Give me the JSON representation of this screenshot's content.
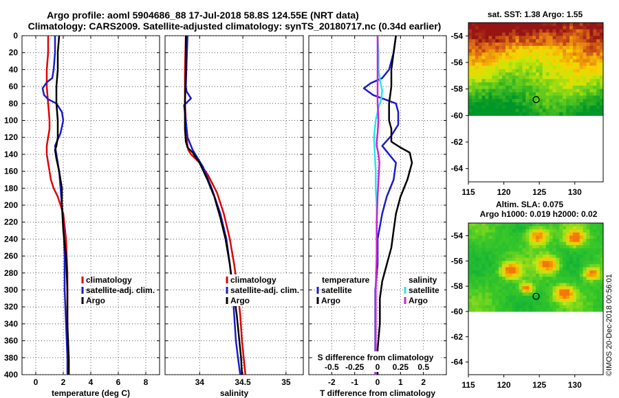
{
  "title": {
    "line1": "Argo profile: aoml 5904686_88 17-Jul-2018 58.8S 124.55E (NRT data)",
    "line2": "Climatology: CARS2009. Satellite-adjusted climatology: synTS_20180717.nc (0.34d earlier)"
  },
  "credit": "©IMOS 20-Dec-2018 00:56:01",
  "colors": {
    "climatology": "#e00000",
    "satellite": "#1a1acc",
    "argo": "#000000",
    "sal_satellite": "#20e8f0",
    "sal_argo": "#d020d0",
    "grid": "#555555"
  },
  "chart_data": [
    {
      "type": "line",
      "name": "temperature-panel",
      "xlabel": "temperature (deg C)",
      "ylabel": "depth",
      "xlim": [
        -1,
        9
      ],
      "ylim": [
        400,
        0
      ],
      "xticks": [
        0,
        2,
        4,
        6,
        8
      ],
      "yticks": [
        0,
        20,
        40,
        60,
        80,
        100,
        120,
        140,
        160,
        180,
        200,
        220,
        240,
        260,
        280,
        300,
        320,
        340,
        360,
        380,
        400
      ],
      "legend": [
        "climatology",
        "satellite-adj. clim.",
        "Argo"
      ],
      "series": [
        {
          "name": "climatology",
          "color": "#e00000",
          "x": [
            0.9,
            0.9,
            0.8,
            0.8,
            0.9,
            1.0,
            1.0,
            0.9,
            0.8,
            0.8,
            0.9,
            1.0,
            1.1,
            1.3,
            1.6,
            2.0,
            2.2,
            2.3,
            2.3,
            2.3,
            2.4,
            2.4
          ],
          "y": [
            0,
            20,
            40,
            60,
            80,
            100,
            110,
            120,
            130,
            140,
            150,
            160,
            170,
            180,
            190,
            210,
            240,
            280,
            320,
            360,
            380,
            400
          ]
        },
        {
          "name": "satellite-adj. clim.",
          "color": "#1a1acc",
          "x": [
            1.4,
            1.4,
            1.3,
            1.2,
            0.8,
            0.5,
            0.6,
            0.9,
            1.5,
            1.9,
            2.0,
            1.8,
            1.4,
            1.5,
            1.7,
            1.9,
            2.0,
            2.1,
            2.1,
            2.2,
            2.3,
            2.3
          ],
          "y": [
            0,
            20,
            40,
            50,
            55,
            62,
            70,
            75,
            80,
            90,
            100,
            115,
            130,
            140,
            160,
            200,
            220,
            260,
            300,
            340,
            380,
            400
          ]
        },
        {
          "name": "Argo",
          "color": "#000000",
          "x": [
            1.7,
            1.6,
            1.6,
            1.5,
            1.5,
            1.6,
            1.6,
            1.5,
            1.4,
            1.5,
            1.7,
            1.9,
            1.9,
            2.0,
            2.2,
            2.3,
            2.3,
            2.4,
            2.4
          ],
          "y": [
            0,
            20,
            40,
            60,
            80,
            100,
            120,
            130,
            135,
            145,
            160,
            180,
            200,
            230,
            260,
            300,
            340,
            380,
            400
          ]
        }
      ]
    },
    {
      "type": "line",
      "name": "salinity-panel",
      "xlabel": "salinity",
      "ylabel": "depth",
      "xlim": [
        33.6,
        35.2
      ],
      "ylim": [
        400,
        0
      ],
      "xticks": [
        34,
        34.5,
        35
      ],
      "yticks": [
        0,
        20,
        40,
        60,
        80,
        100,
        120,
        140,
        160,
        180,
        200,
        220,
        240,
        260,
        280,
        300,
        320,
        340,
        360,
        380,
        400
      ],
      "legend": [
        "climatology",
        "satellite-adj. clim.",
        "Argo"
      ],
      "series": [
        {
          "name": "climatology",
          "color": "#e00000",
          "x": [
            33.84,
            33.83,
            33.83,
            33.84,
            33.85,
            33.86,
            33.87,
            33.9,
            34.0,
            34.1,
            34.2,
            34.28,
            34.35,
            34.4,
            34.44,
            34.47,
            34.49,
            34.51,
            34.53
          ],
          "y": [
            0,
            40,
            80,
            100,
            120,
            130,
            135,
            140,
            150,
            165,
            185,
            210,
            240,
            270,
            300,
            330,
            360,
            380,
            400
          ]
        },
        {
          "name": "satellite-adj. clim.",
          "color": "#1a1acc",
          "x": [
            33.86,
            33.85,
            33.84,
            33.85,
            33.9,
            33.82,
            33.84,
            33.86,
            33.92,
            34.04,
            34.14,
            34.24,
            34.31,
            34.35,
            34.38,
            34.4,
            34.42,
            34.45,
            34.47
          ],
          "y": [
            0,
            30,
            60,
            66,
            74,
            82,
            100,
            120,
            135,
            155,
            180,
            210,
            240,
            270,
            300,
            330,
            360,
            385,
            400
          ]
        },
        {
          "name": "Argo",
          "color": "#000000",
          "x": [
            33.84,
            33.84,
            33.83,
            33.83,
            33.84,
            33.86,
            33.92,
            34.0,
            34.09,
            34.17,
            34.24,
            34.3,
            34.35,
            34.39,
            34.43,
            34.46,
            34.48,
            34.49
          ],
          "y": [
            0,
            40,
            80,
            110,
            125,
            132,
            138,
            150,
            170,
            190,
            215,
            240,
            270,
            300,
            330,
            360,
            380,
            400
          ]
        }
      ]
    },
    {
      "type": "line",
      "name": "difference-panel",
      "xlabel": "T difference from climatology",
      "x2label": "S difference from climatology",
      "ylabel": "depth",
      "xlim": [
        -3,
        3
      ],
      "x2lim": [
        -0.75,
        0.75
      ],
      "ylim": [
        400,
        0
      ],
      "xticks": [
        -2,
        -1,
        0,
        1,
        2
      ],
      "x2ticks": [
        -0.5,
        -0.25,
        0,
        0.25,
        0.5
      ],
      "x2ticklabels": [
        "-0.5",
        "-0.25",
        "0",
        "0.25",
        "0.5"
      ],
      "yticks": [
        0,
        20,
        40,
        60,
        80,
        100,
        120,
        140,
        160,
        180,
        200,
        220,
        240,
        260,
        280,
        300,
        320,
        340,
        360,
        380,
        400
      ],
      "legend_temperature": {
        "title": "temperature",
        "items": [
          "satellite",
          "Argo"
        ]
      },
      "legend_salinity": {
        "title": "salinity",
        "items": [
          "satellite",
          "Argo"
        ]
      },
      "series": [
        {
          "name": "T satellite",
          "group": "temperature",
          "color": "#1a1acc",
          "x": [
            0.8,
            0.7,
            0.5,
            0.2,
            -0.3,
            -0.6,
            -0.2,
            0.3,
            0.8,
            0.9,
            0.9,
            0.6,
            0.2,
            0.5,
            0.8,
            0.7,
            0.4,
            0.2,
            0.0,
            0.0,
            -0.1,
            -0.1,
            -0.1,
            -0.1
          ],
          "y": [
            0,
            20,
            40,
            50,
            56,
            62,
            70,
            75,
            80,
            90,
            105,
            118,
            130,
            140,
            150,
            170,
            190,
            210,
            240,
            270,
            300,
            330,
            370,
            400
          ]
        },
        {
          "name": "T Argo",
          "group": "temperature",
          "color": "#000000",
          "x": [
            0.8,
            0.7,
            0.6,
            0.6,
            0.5,
            0.5,
            0.6,
            0.6,
            0.6,
            1.0,
            1.4,
            1.5,
            1.3,
            1.0,
            0.8,
            0.7,
            0.6,
            0.4,
            0.2,
            0.1,
            0.1,
            0.0,
            0.0
          ],
          "y": [
            0,
            20,
            40,
            60,
            80,
            100,
            110,
            118,
            125,
            132,
            138,
            150,
            170,
            190,
            210,
            230,
            250,
            270,
            290,
            310,
            340,
            370,
            400
          ]
        },
        {
          "name": "S satellite",
          "group": "salinity",
          "color": "#20e8f0",
          "x": [
            0.0,
            0.01,
            0.01,
            0.03,
            0.05,
            0.04,
            0.01,
            -0.02,
            -0.04,
            -0.03,
            -0.02,
            -0.02,
            -0.01,
            -0.01,
            -0.01,
            -0.02,
            -0.02,
            -0.02,
            -0.02
          ],
          "y": [
            0,
            20,
            40,
            55,
            65,
            75,
            85,
            100,
            120,
            140,
            160,
            180,
            200,
            230,
            260,
            300,
            340,
            380,
            400
          ]
        },
        {
          "name": "S Argo",
          "group": "salinity",
          "color": "#d020d0",
          "x": [
            0.0,
            0.0,
            0.0,
            0.0,
            0.0,
            0.01,
            0.0,
            -0.01,
            -0.01,
            0.01,
            0.02,
            0.01,
            0.0,
            -0.01,
            -0.01,
            -0.02,
            -0.02,
            -0.02,
            -0.02
          ],
          "y": [
            0,
            20,
            40,
            60,
            80,
            100,
            115,
            125,
            130,
            140,
            150,
            170,
            190,
            220,
            260,
            300,
            340,
            380,
            400
          ]
        }
      ]
    },
    {
      "type": "heatmap",
      "name": "sst-map",
      "title": "sat. SST: 1.38 Argo: 1.55",
      "xlim": [
        115,
        134
      ],
      "ylim": [
        -65,
        -53
      ],
      "xticks": [
        115,
        120,
        125,
        130
      ],
      "yticks": [
        -54,
        -56,
        -58,
        -60,
        -62,
        -64
      ],
      "data_ylim": [
        -60,
        -53
      ],
      "marker": {
        "lon": 124.55,
        "lat": -58.8
      }
    },
    {
      "type": "heatmap",
      "name": "sla-map",
      "title_line1": "Altim. SLA: 0.075",
      "title_line2": "Argo h1000: 0.019 h2000: 0.02",
      "xlim": [
        115,
        134
      ],
      "ylim": [
        -65,
        -53
      ],
      "xticks": [
        115,
        120,
        125,
        130
      ],
      "yticks": [
        -54,
        -56,
        -58,
        -60,
        -62,
        -64
      ],
      "data_ylim": [
        -60,
        -53
      ],
      "marker": {
        "lon": 124.55,
        "lat": -58.8
      }
    }
  ]
}
